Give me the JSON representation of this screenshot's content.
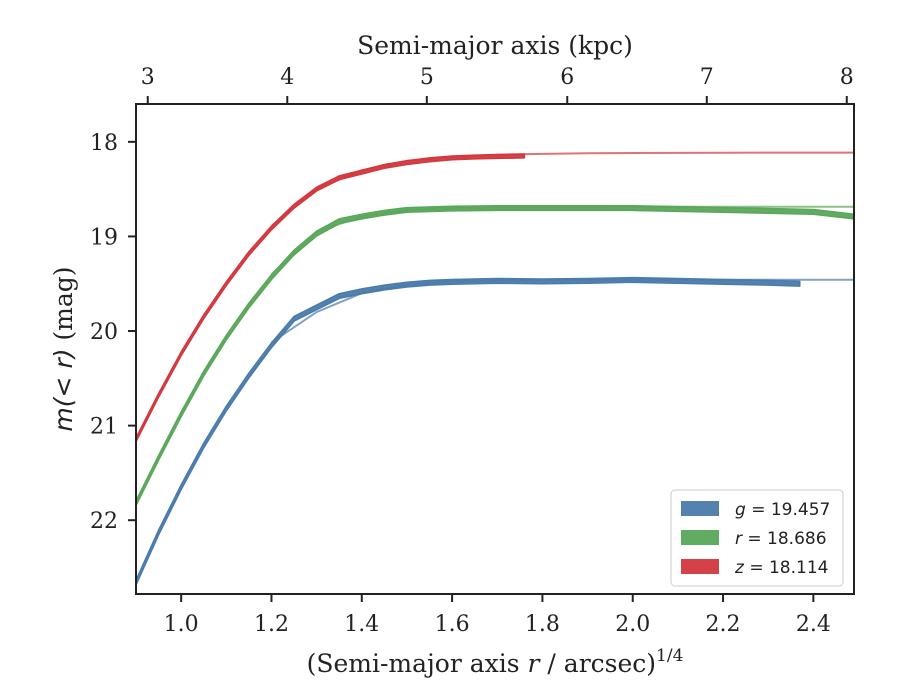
{
  "chart_data": {
    "type": "line",
    "xlabel": "(Semi-major axis r / arcsec)^1/4",
    "xlabel_parts": {
      "pre": "(Semi-major axis ",
      "var": "r",
      "post": " / arcsec)",
      "sup": "1/4"
    },
    "ylabel": "m(<r) (mag)",
    "ylabel_parts": {
      "func": "m",
      "arg": "(< r)",
      "unit": " (mag)"
    },
    "top_xlabel": "Semi-major axis (kpc)",
    "xlim": [
      0.9,
      2.49
    ],
    "ylim": [
      22.78,
      17.6
    ],
    "y_inverted": true,
    "x_ticks": [
      1.0,
      1.2,
      1.4,
      1.6,
      1.8,
      2.0,
      2.2,
      2.4
    ],
    "x_tick_labels": [
      "1.0",
      "1.2",
      "1.4",
      "1.6",
      "1.8",
      "2.0",
      "2.2",
      "2.4"
    ],
    "y_ticks": [
      18,
      19,
      20,
      21,
      22
    ],
    "y_tick_labels": [
      "18",
      "19",
      "20",
      "21",
      "22"
    ],
    "top_ticks": [
      {
        "label": "3",
        "x": 0.926
      },
      {
        "label": "4",
        "x": 1.235
      },
      {
        "label": "5",
        "x": 1.544
      },
      {
        "label": "6",
        "x": 1.855
      },
      {
        "label": "7",
        "x": 2.164
      },
      {
        "label": "8",
        "x": 2.474
      }
    ],
    "grid": false,
    "legend_position": "bottom-right",
    "series": [
      {
        "name": "g = 19.457",
        "legend_var": "g",
        "legend_value": "= 19.457",
        "color": "#4a7bab",
        "band_width": 0.05,
        "data": [
          [
            0.9,
            22.66
          ],
          [
            0.95,
            22.13
          ],
          [
            1.0,
            21.65
          ],
          [
            1.05,
            21.21
          ],
          [
            1.1,
            20.82
          ],
          [
            1.15,
            20.47
          ],
          [
            1.2,
            20.15
          ],
          [
            1.25,
            19.87
          ],
          [
            1.3,
            19.75
          ],
          [
            1.35,
            19.63
          ],
          [
            1.4,
            19.58
          ],
          [
            1.45,
            19.54
          ],
          [
            1.5,
            19.51
          ],
          [
            1.55,
            19.49
          ],
          [
            1.6,
            19.48
          ],
          [
            1.7,
            19.47
          ],
          [
            1.8,
            19.475
          ],
          [
            1.9,
            19.47
          ],
          [
            2.0,
            19.46
          ],
          [
            2.1,
            19.47
          ],
          [
            2.2,
            19.48
          ],
          [
            2.3,
            19.49
          ],
          [
            2.37,
            19.5
          ]
        ],
        "model": [
          [
            1.2,
            20.12
          ],
          [
            1.3,
            19.8
          ],
          [
            1.4,
            19.6
          ],
          [
            1.5,
            19.51
          ],
          [
            1.6,
            19.475
          ],
          [
            1.8,
            19.46
          ],
          [
            2.0,
            19.457
          ],
          [
            2.49,
            19.457
          ]
        ]
      },
      {
        "name": "r = 18.686",
        "legend_var": "r",
        "legend_value": "= 18.686",
        "color": "#5aa75a",
        "band_width": 0.05,
        "data": [
          [
            0.9,
            21.82
          ],
          [
            0.95,
            21.34
          ],
          [
            1.0,
            20.88
          ],
          [
            1.05,
            20.45
          ],
          [
            1.1,
            20.07
          ],
          [
            1.15,
            19.73
          ],
          [
            1.2,
            19.43
          ],
          [
            1.25,
            19.17
          ],
          [
            1.3,
            18.97
          ],
          [
            1.35,
            18.84
          ],
          [
            1.4,
            18.79
          ],
          [
            1.45,
            18.75
          ],
          [
            1.5,
            18.72
          ],
          [
            1.6,
            18.705
          ],
          [
            1.7,
            18.7
          ],
          [
            1.8,
            18.7
          ],
          [
            1.9,
            18.7
          ],
          [
            2.0,
            18.7
          ],
          [
            2.1,
            18.71
          ],
          [
            2.2,
            18.72
          ],
          [
            2.3,
            18.73
          ],
          [
            2.4,
            18.74
          ],
          [
            2.49,
            18.79
          ]
        ],
        "model": [
          [
            1.2,
            19.4
          ],
          [
            1.3,
            18.95
          ],
          [
            1.4,
            18.79
          ],
          [
            1.5,
            18.72
          ],
          [
            1.6,
            18.7
          ],
          [
            1.8,
            18.688
          ],
          [
            2.0,
            18.686
          ],
          [
            2.49,
            18.686
          ]
        ]
      },
      {
        "name": "z = 18.114",
        "legend_var": "z",
        "legend_value": "= 18.114",
        "color": "#d2383e",
        "band_width": 0.04,
        "data": [
          [
            0.9,
            21.15
          ],
          [
            0.95,
            20.68
          ],
          [
            1.0,
            20.24
          ],
          [
            1.05,
            19.85
          ],
          [
            1.1,
            19.5
          ],
          [
            1.15,
            19.18
          ],
          [
            1.2,
            18.91
          ],
          [
            1.25,
            18.68
          ],
          [
            1.3,
            18.5
          ],
          [
            1.35,
            18.38
          ],
          [
            1.4,
            18.32
          ],
          [
            1.45,
            18.26
          ],
          [
            1.5,
            18.22
          ],
          [
            1.55,
            18.19
          ],
          [
            1.6,
            18.17
          ],
          [
            1.65,
            18.16
          ],
          [
            1.7,
            18.155
          ],
          [
            1.76,
            18.15
          ]
        ],
        "model": [
          [
            1.2,
            18.89
          ],
          [
            1.3,
            18.5
          ],
          [
            1.4,
            18.3
          ],
          [
            1.5,
            18.2
          ],
          [
            1.6,
            18.16
          ],
          [
            1.7,
            18.135
          ],
          [
            1.9,
            18.12
          ],
          [
            2.2,
            18.115
          ],
          [
            2.49,
            18.114
          ]
        ]
      }
    ]
  }
}
